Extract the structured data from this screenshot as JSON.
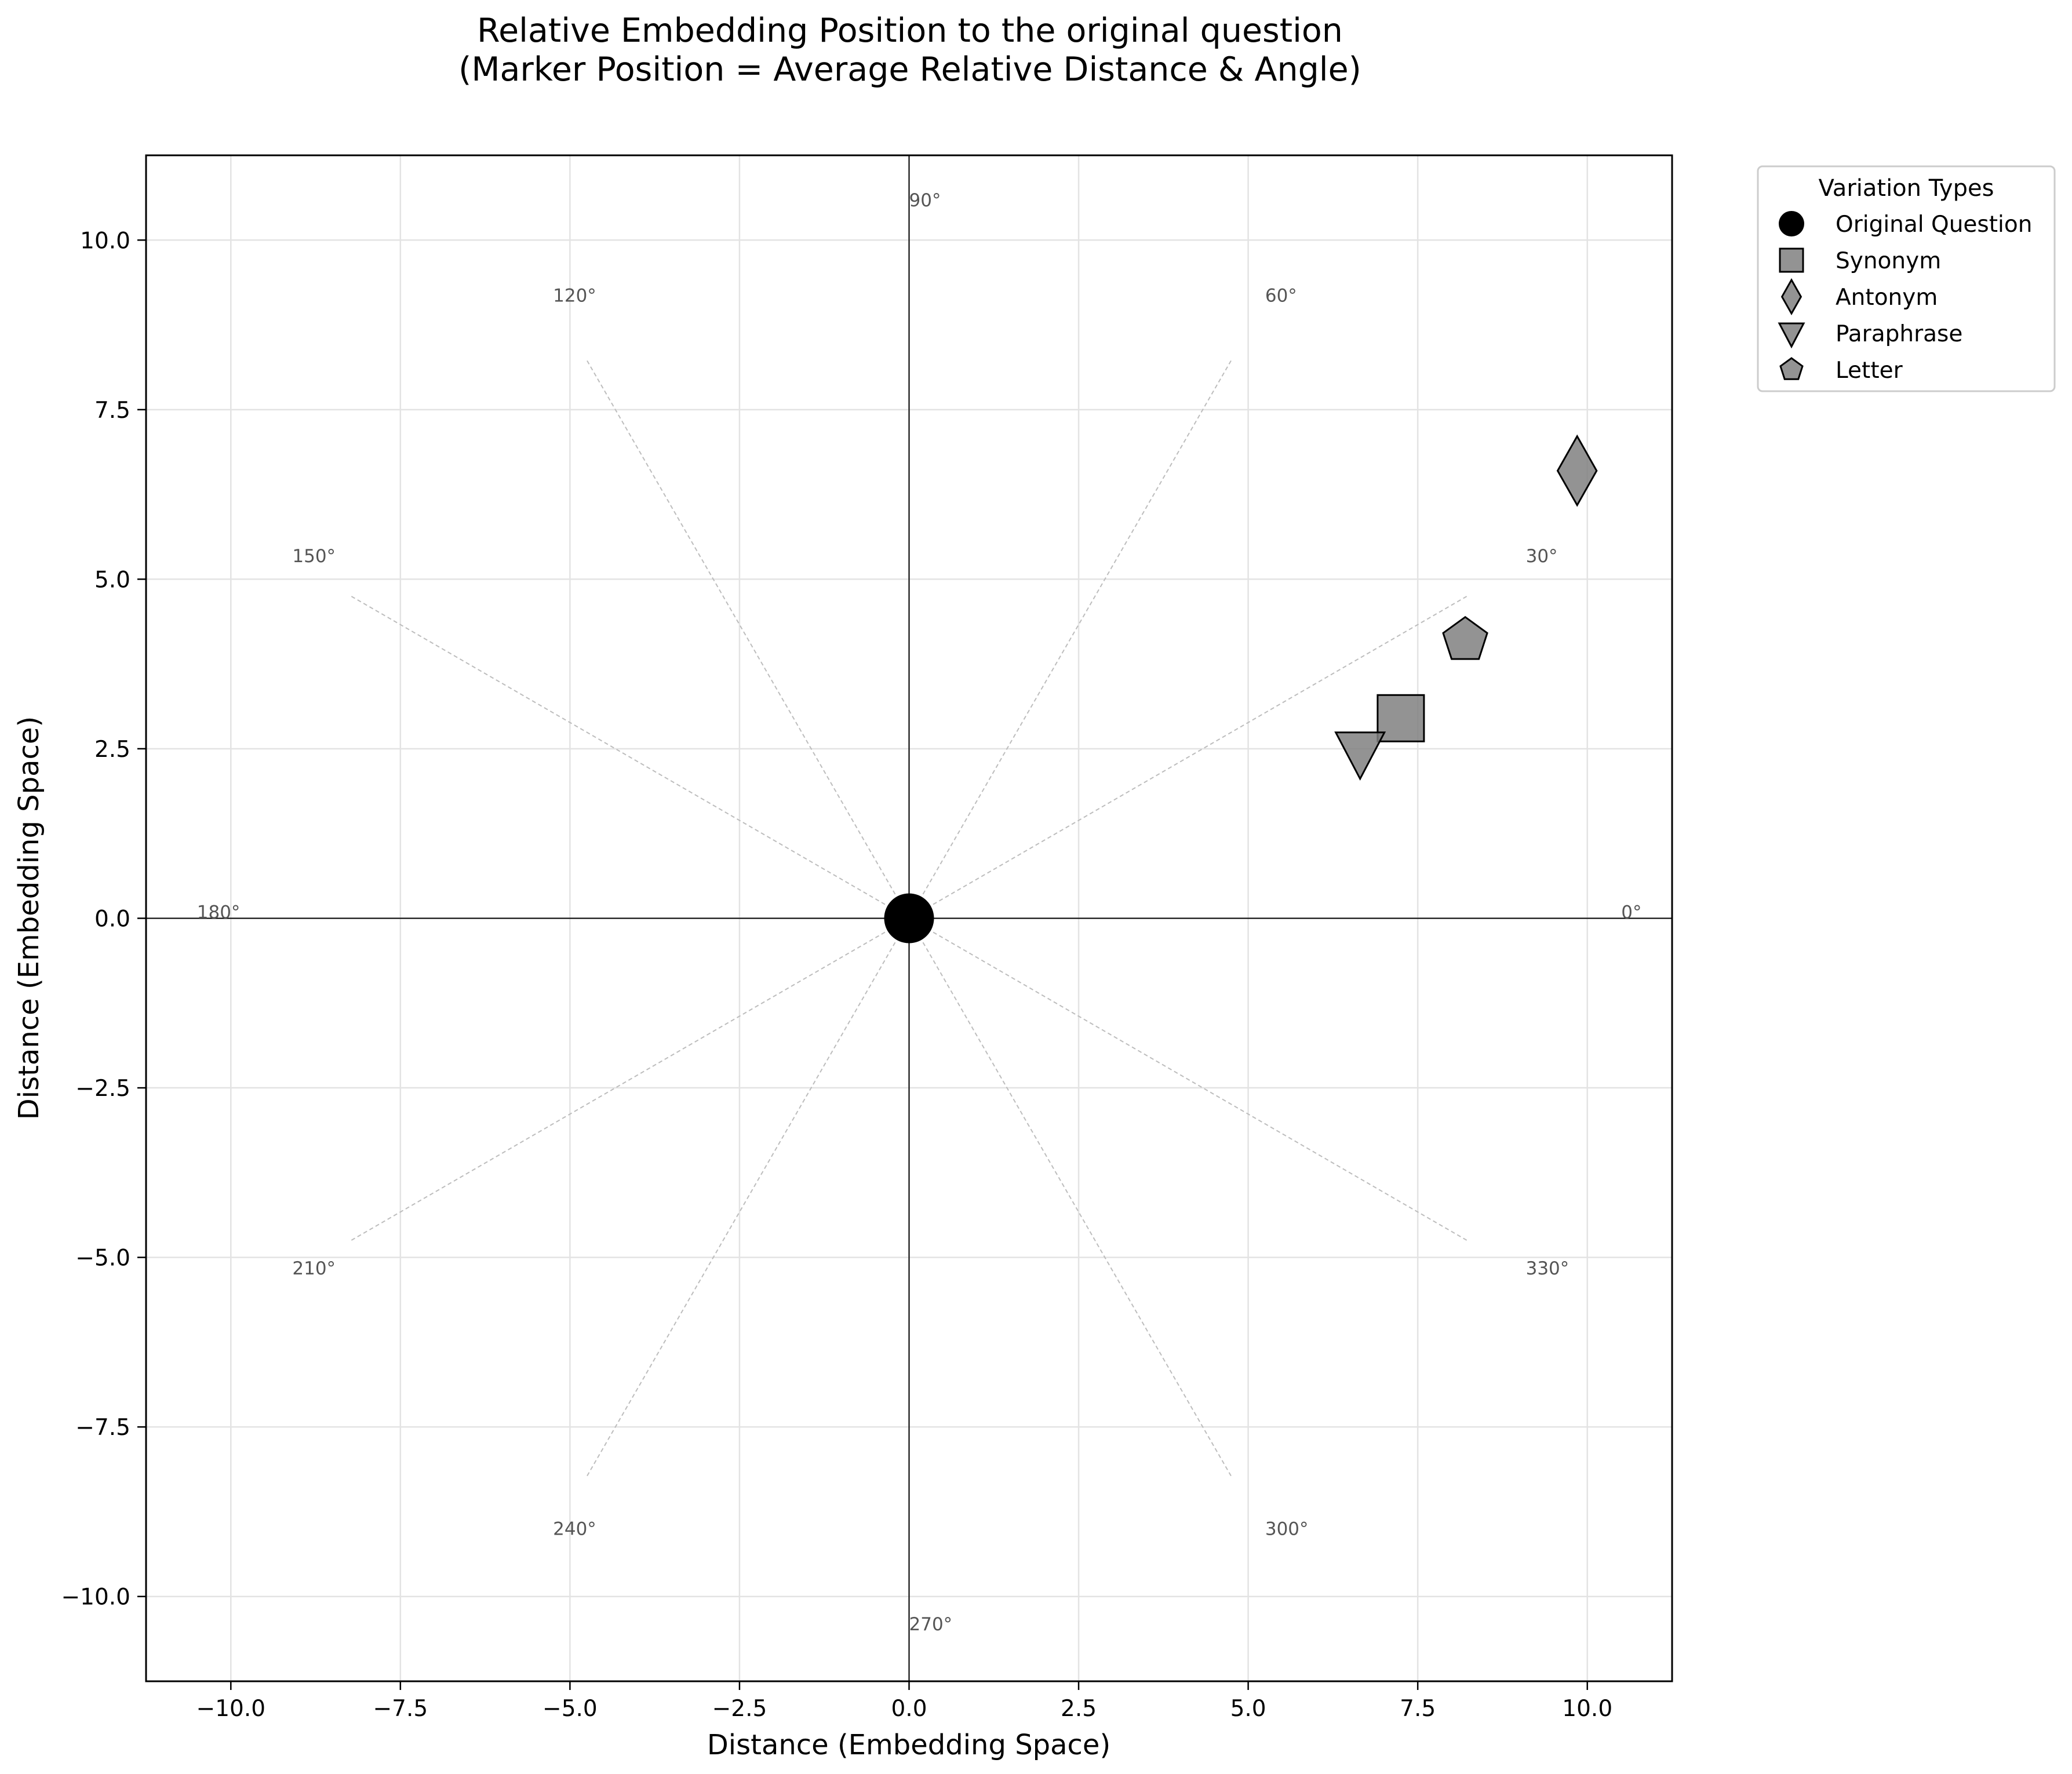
{
  "chart_data": {
    "type": "scatter",
    "title": "Relative Embedding Position to the original question",
    "subtitle": "(Marker Position = Average Relative Distance & Angle)",
    "xlabel": "Distance (Embedding Space)",
    "ylabel": "Distance (Embedding Space)",
    "xlim": [
      -11.25,
      11.25
    ],
    "ylim": [
      -11.25,
      11.25
    ],
    "xticks": [
      -10,
      -7.5,
      -5,
      -2.5,
      0,
      2.5,
      5,
      7.5,
      10
    ],
    "xtick_labels": [
      "−10.0",
      "−7.5",
      "−5.0",
      "−2.5",
      "0.0",
      "2.5",
      "5.0",
      "7.5",
      "10.0"
    ],
    "yticks": [
      -10,
      -7.5,
      -5,
      -2.5,
      0,
      2.5,
      5,
      7.5,
      10
    ],
    "ytick_labels": [
      "−10.0",
      "−7.5",
      "−5.0",
      "−2.5",
      "0.0",
      "2.5",
      "5.0",
      "7.5",
      "10.0"
    ],
    "grid": true,
    "radial_guide_length": 9.5,
    "angle_label_radius": 10.5,
    "angle_labels": [
      {
        "angle": 0,
        "text": "0°"
      },
      {
        "angle": 30,
        "text": "30°"
      },
      {
        "angle": 60,
        "text": "60°"
      },
      {
        "angle": 90,
        "text": "90°"
      },
      {
        "angle": 120,
        "text": "120°"
      },
      {
        "angle": 150,
        "text": "150°"
      },
      {
        "angle": 180,
        "text": "180°"
      },
      {
        "angle": 210,
        "text": "210°"
      },
      {
        "angle": 240,
        "text": "240°"
      },
      {
        "angle": 270,
        "text": "270°"
      },
      {
        "angle": 300,
        "text": "300°"
      },
      {
        "angle": 330,
        "text": "330°"
      }
    ],
    "legend_title": "Variation Types",
    "legend_position": "outside upper right",
    "series": [
      {
        "name": "Original Question",
        "marker": "circle",
        "color": "#000000",
        "x": 0.0,
        "y": 0.0
      },
      {
        "name": "Synonym",
        "marker": "square",
        "color": "#808080",
        "x": 7.25,
        "y": 2.95
      },
      {
        "name": "Antonym",
        "marker": "diamond",
        "color": "#808080",
        "x": 9.85,
        "y": 6.6
      },
      {
        "name": "Paraphrase",
        "marker": "triangle-down",
        "color": "#808080",
        "x": 6.65,
        "y": 2.45
      },
      {
        "name": "Letter",
        "marker": "pentagon",
        "color": "#808080",
        "x": 8.2,
        "y": 4.1
      }
    ]
  }
}
